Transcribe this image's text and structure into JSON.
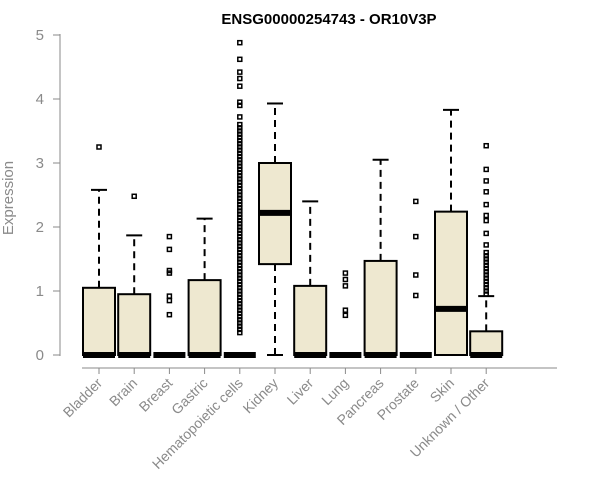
{
  "chart_data": {
    "type": "boxplot",
    "title": "ENSG00000254743 - OR10V3P",
    "ylabel": "Expression",
    "xlabel": "",
    "ylim": [
      0,
      5
    ],
    "yticks": [
      0,
      1,
      2,
      3,
      4,
      5
    ],
    "colors": {
      "box_fill": "#eee8d0",
      "stroke": "#000000",
      "axis": "#8a8a8a"
    },
    "categories": [
      "Bladder",
      "Brain",
      "Breast",
      "Gastric",
      "Hematopoietic cells",
      "Kidney",
      "Liver",
      "Lung",
      "Pancreas",
      "Prostate",
      "Skin",
      "Unknown / Other"
    ],
    "boxes": [
      {
        "category": "Bladder",
        "min": 0,
        "q1": 0,
        "median": 0,
        "q3": 1.05,
        "max": 2.58,
        "outliers": [
          3.25
        ]
      },
      {
        "category": "Brain",
        "min": 0,
        "q1": 0,
        "median": 0,
        "q3": 0.95,
        "max": 1.87,
        "outliers": [
          2.48
        ]
      },
      {
        "category": "Breast",
        "min": 0,
        "q1": 0,
        "median": 0,
        "q3": 0,
        "max": 0,
        "outliers": [
          0.63,
          0.85,
          0.92,
          1.28,
          1.32,
          1.65,
          1.85
        ]
      },
      {
        "category": "Gastric",
        "min": 0,
        "q1": 0,
        "median": 0,
        "q3": 1.17,
        "max": 2.13,
        "outliers": []
      },
      {
        "category": "Hematopoietic cells",
        "min": 0,
        "q1": 0,
        "median": 0,
        "q3": 0,
        "max": 0,
        "outliers": [
          0.35,
          0.4,
          0.45,
          0.5,
          0.55,
          0.6,
          0.65,
          0.7,
          0.75,
          0.8,
          0.85,
          0.9,
          0.95,
          1.0,
          1.05,
          1.1,
          1.15,
          1.2,
          1.25,
          1.3,
          1.35,
          1.4,
          1.45,
          1.5,
          1.55,
          1.6,
          1.65,
          1.7,
          1.75,
          1.8,
          1.85,
          1.9,
          1.95,
          2.0,
          2.05,
          2.1,
          2.15,
          2.2,
          2.25,
          2.3,
          2.35,
          2.4,
          2.45,
          2.5,
          2.55,
          2.6,
          2.65,
          2.7,
          2.75,
          2.8,
          2.85,
          2.9,
          2.95,
          3.0,
          3.05,
          3.1,
          3.15,
          3.2,
          3.25,
          3.3,
          3.35,
          3.4,
          3.45,
          3.5,
          3.55,
          3.6,
          3.72,
          3.9,
          3.95,
          4.2,
          4.32,
          4.42,
          4.62,
          4.88
        ]
      },
      {
        "category": "Kidney",
        "min": 0,
        "q1": 1.42,
        "median": 2.22,
        "q3": 3.0,
        "max": 3.93,
        "outliers": []
      },
      {
        "category": "Liver",
        "min": 0,
        "q1": 0,
        "median": 0,
        "q3": 1.08,
        "max": 2.4,
        "outliers": []
      },
      {
        "category": "Lung",
        "min": 0,
        "q1": 0,
        "median": 0,
        "q3": 0,
        "max": 0,
        "outliers": [
          0.62,
          0.7,
          1.08,
          1.18,
          1.28
        ]
      },
      {
        "category": "Pancreas",
        "min": 0,
        "q1": 0,
        "median": 0,
        "q3": 1.47,
        "max": 3.05,
        "outliers": []
      },
      {
        "category": "Prostate",
        "min": 0,
        "q1": 0,
        "median": 0,
        "q3": 0,
        "max": 0,
        "outliers": [
          0.93,
          1.25,
          1.85,
          2.4
        ]
      },
      {
        "category": "Skin",
        "min": 0,
        "q1": 0,
        "median": 0.72,
        "q3": 2.24,
        "max": 3.83,
        "outliers": []
      },
      {
        "category": "Unknown / Other",
        "min": 0,
        "q1": 0,
        "median": 0,
        "q3": 0.37,
        "max": 0.92,
        "outliers": [
          0.95,
          1.0,
          1.05,
          1.1,
          1.15,
          1.2,
          1.25,
          1.3,
          1.35,
          1.4,
          1.45,
          1.5,
          1.55,
          1.6,
          1.72,
          1.9,
          2.1,
          2.18,
          2.35,
          2.55,
          2.72,
          2.9,
          3.27
        ]
      }
    ]
  }
}
